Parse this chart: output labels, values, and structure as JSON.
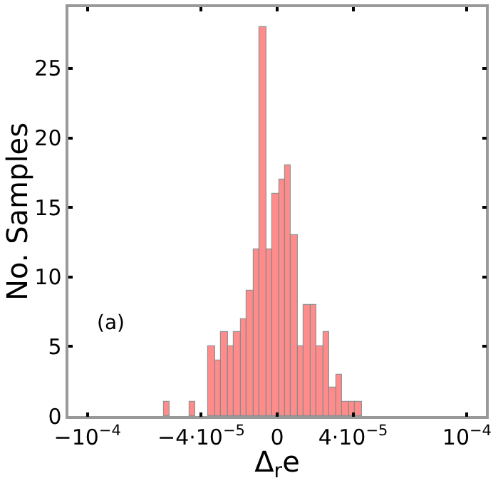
{
  "chart_data": {
    "type": "histogram",
    "xlabel": "Δ$_{r}$e",
    "ylabel": "No. Samples",
    "annotations": [
      "(a)"
    ],
    "bins": [
      -5.97e-05,
      -5.634e-05,
      -5.298e-05,
      -4.962e-05,
      -4.626e-05,
      -4.29e-05,
      -3.954e-05,
      -3.618e-05,
      -3.282e-05,
      -2.946e-05,
      -2.61e-05,
      -2.274e-05,
      -1.938e-05,
      -1.602e-05,
      -1.266e-05,
      -9.3e-06,
      -5.94e-06,
      -2.58e-06,
      7.8e-07,
      4.14e-06,
      7.5e-06,
      1.086e-05,
      1.422e-05,
      1.758e-05,
      2.094e-05,
      2.43e-05,
      2.766e-05,
      3.102e-05,
      3.438e-05,
      3.774e-05,
      4.11e-05,
      4.446e-05
    ],
    "values": [
      1,
      0,
      0,
      0,
      1,
      0,
      0,
      5,
      4,
      6,
      5,
      6,
      7,
      9,
      12,
      28,
      12,
      16,
      17,
      18,
      13,
      5,
      8,
      8,
      5,
      6,
      2,
      3,
      1,
      1,
      1
    ],
    "color": "#ff7f7f",
    "xlim": [
      -0.00011,
      0.00011
    ],
    "ylim": [
      0,
      29.4
    ],
    "xticks": [
      {
        "value": -0.0001,
        "label": "−10$^{−4}$"
      },
      {
        "value": -4e-05,
        "label": "−4·10$^{−5}$"
      },
      0,
      {
        "value": 4e-05,
        "label": "4·10$^{−5}$"
      },
      {
        "value": 0.0001,
        "label": "10$^{−4}$"
      }
    ],
    "yticks": [
      0,
      5,
      10,
      15,
      20,
      25
    ]
  }
}
